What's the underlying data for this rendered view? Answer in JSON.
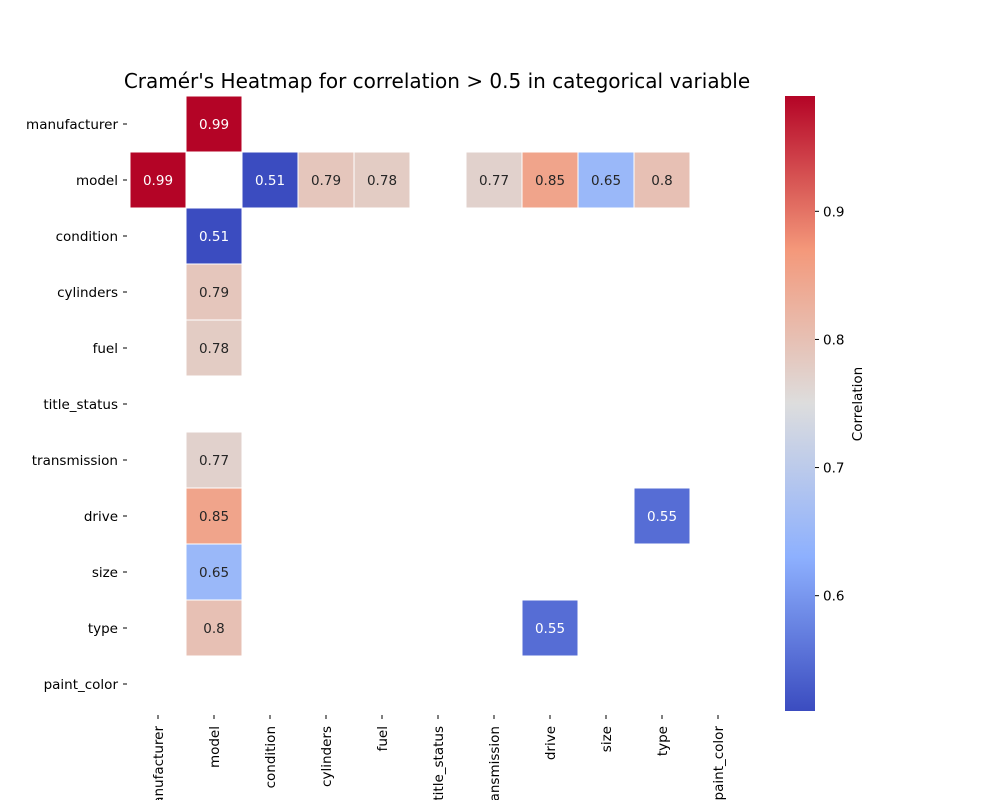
{
  "chart_data": {
    "type": "heatmap",
    "title": "Cramér's Heatmap for correlation > 0.5 in categorical variable",
    "rows": [
      "manufacturer",
      "model",
      "condition",
      "cylinders",
      "fuel",
      "title_status",
      "transmission",
      "drive",
      "size",
      "type",
      "paint_color"
    ],
    "columns": [
      "manufacturer",
      "model",
      "condition",
      "cylinders",
      "fuel",
      "title_status",
      "transmission",
      "drive",
      "size",
      "type",
      "paint_color"
    ],
    "x_tick_labels": [
      "manufacturer",
      "model",
      "condition",
      "cylinders",
      "fuel",
      "title_status",
      "transmission",
      "drive",
      "size",
      "type",
      "paint_color"
    ],
    "cells": [
      {
        "row": "manufacturer",
        "col": "model",
        "value": 0.99,
        "label": "0.99"
      },
      {
        "row": "model",
        "col": "manufacturer",
        "value": 0.99,
        "label": "0.99"
      },
      {
        "row": "model",
        "col": "condition",
        "value": 0.51,
        "label": "0.51"
      },
      {
        "row": "model",
        "col": "cylinders",
        "value": 0.79,
        "label": "0.79"
      },
      {
        "row": "model",
        "col": "fuel",
        "value": 0.78,
        "label": "0.78"
      },
      {
        "row": "model",
        "col": "transmission",
        "value": 0.77,
        "label": "0.77"
      },
      {
        "row": "model",
        "col": "drive",
        "value": 0.85,
        "label": "0.85"
      },
      {
        "row": "model",
        "col": "size",
        "value": 0.65,
        "label": "0.65"
      },
      {
        "row": "model",
        "col": "type",
        "value": 0.8,
        "label": "0.8"
      },
      {
        "row": "condition",
        "col": "model",
        "value": 0.51,
        "label": "0.51"
      },
      {
        "row": "cylinders",
        "col": "model",
        "value": 0.79,
        "label": "0.79"
      },
      {
        "row": "fuel",
        "col": "model",
        "value": 0.78,
        "label": "0.78"
      },
      {
        "row": "transmission",
        "col": "model",
        "value": 0.77,
        "label": "0.77"
      },
      {
        "row": "drive",
        "col": "model",
        "value": 0.85,
        "label": "0.85"
      },
      {
        "row": "drive",
        "col": "type",
        "value": 0.55,
        "label": "0.55"
      },
      {
        "row": "size",
        "col": "model",
        "value": 0.65,
        "label": "0.65"
      },
      {
        "row": "type",
        "col": "model",
        "value": 0.8,
        "label": "0.8"
      },
      {
        "row": "type",
        "col": "drive",
        "value": 0.55,
        "label": "0.55"
      }
    ],
    "colorbar": {
      "label": "Correlation",
      "range": [
        0.51,
        0.99
      ],
      "ticks": [
        0.6,
        0.7,
        0.8,
        0.9
      ],
      "tick_labels": [
        "0.6",
        "0.7",
        "0.8",
        "0.9"
      ],
      "colormap": "coolwarm"
    },
    "grid": false
  }
}
